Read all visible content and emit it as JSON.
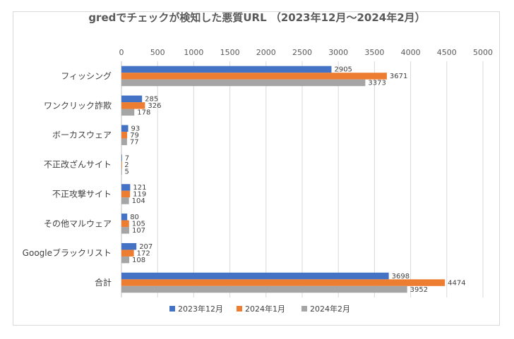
{
  "chart_data": {
    "type": "bar",
    "orientation": "horizontal",
    "title": "gredでチェックが検知した悪質URL （2023年12月～2024年2月）",
    "categories": [
      "フィッシング",
      "ワンクリック詐欺",
      "ボーカスウェア",
      "不正改ざんサイト",
      "不正攻撃サイト",
      "その他マルウェア",
      "Googleブラックリスト",
      "合計"
    ],
    "series": [
      {
        "name": "2023年12月",
        "color": "#4472c4",
        "values": [
          2905,
          285,
          93,
          7,
          121,
          80,
          207,
          3698
        ]
      },
      {
        "name": "2024年1月",
        "color": "#ed7d31",
        "values": [
          3671,
          326,
          79,
          2,
          119,
          105,
          172,
          4474
        ]
      },
      {
        "name": "2024年2月",
        "color": "#a5a5a5",
        "values": [
          3373,
          178,
          77,
          5,
          104,
          107,
          108,
          3952
        ]
      }
    ],
    "xlim": [
      0,
      5000
    ],
    "xticks": [
      0,
      500,
      1000,
      1500,
      2000,
      2500,
      3000,
      3500,
      4000,
      4500,
      5000
    ],
    "x_axis_position": "top",
    "grid": true,
    "legend": "bottom",
    "data_labels": true
  }
}
